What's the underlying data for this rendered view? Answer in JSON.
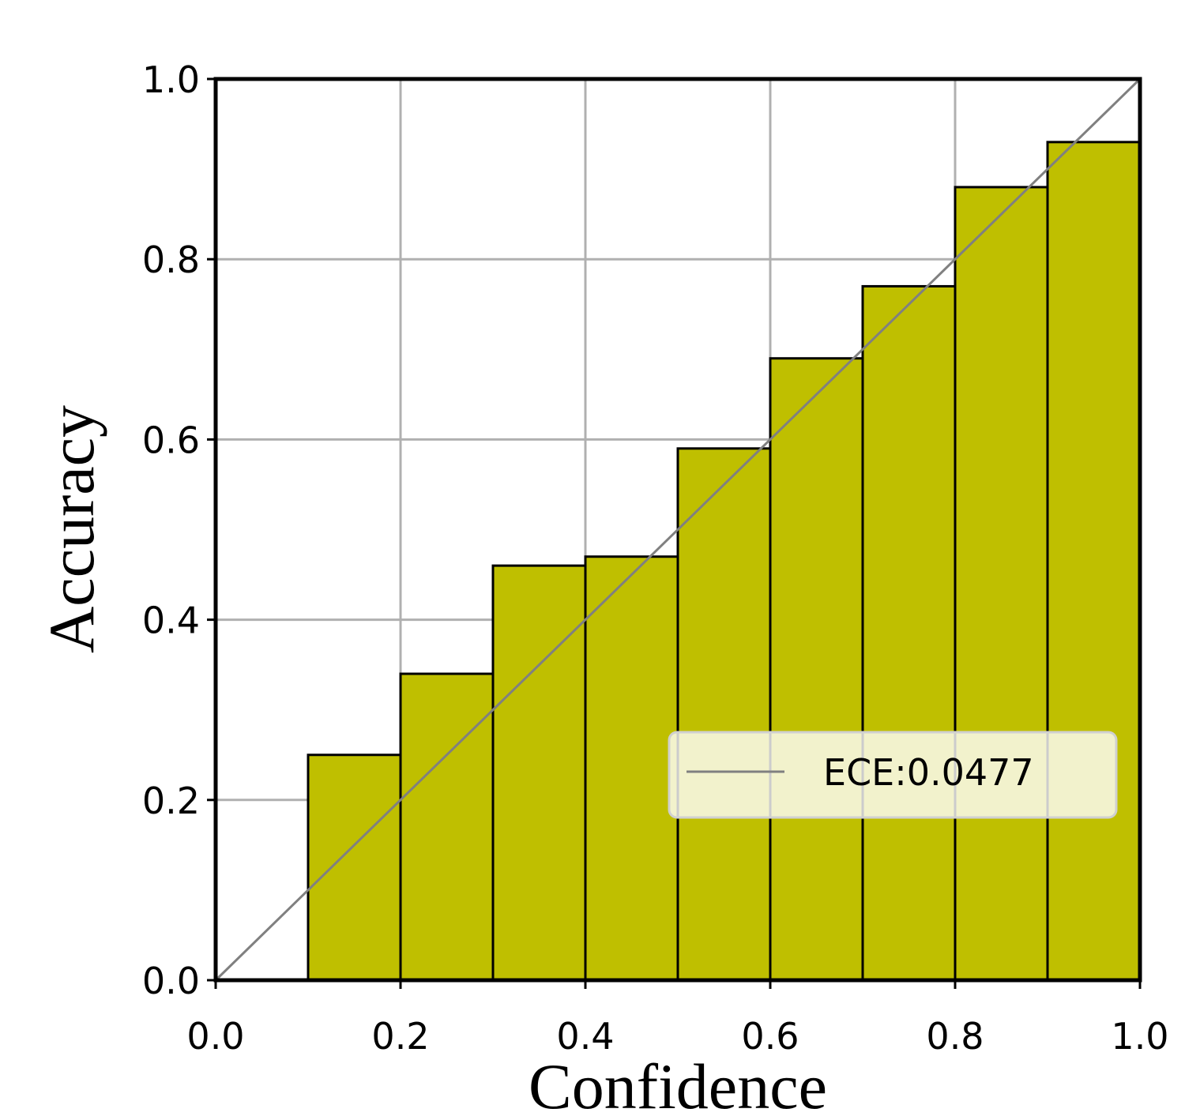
{
  "chart_data": {
    "type": "histogram",
    "xlabel": "Confidence",
    "ylabel": "Accuracy",
    "bins": [
      0.1,
      0.2,
      0.3,
      0.4,
      0.5,
      0.6,
      0.7,
      0.8,
      0.9,
      1.0
    ],
    "values": [
      0.25,
      0.34,
      0.46,
      0.47,
      0.59,
      0.69,
      0.77,
      0.88,
      0.93
    ],
    "color": "#bfbf00",
    "reference_line": {
      "name": "ECE:0.0477",
      "color": "#808080",
      "x": [
        0,
        1
      ],
      "y": [
        0,
        1
      ]
    },
    "xlim": [
      0,
      1
    ],
    "ylim": [
      0,
      1
    ],
    "xticks": [
      {
        "value": 0,
        "label": "0.0"
      },
      0.2,
      0.4,
      0.6,
      0.8,
      {
        "value": 1,
        "label": "1.0"
      }
    ],
    "yticks": [
      {
        "value": 0,
        "label": "0.0"
      },
      0.2,
      0.4,
      0.6,
      0.8,
      {
        "value": 1,
        "label": "1.0"
      }
    ],
    "grid": true,
    "legend_position": "lower right"
  }
}
